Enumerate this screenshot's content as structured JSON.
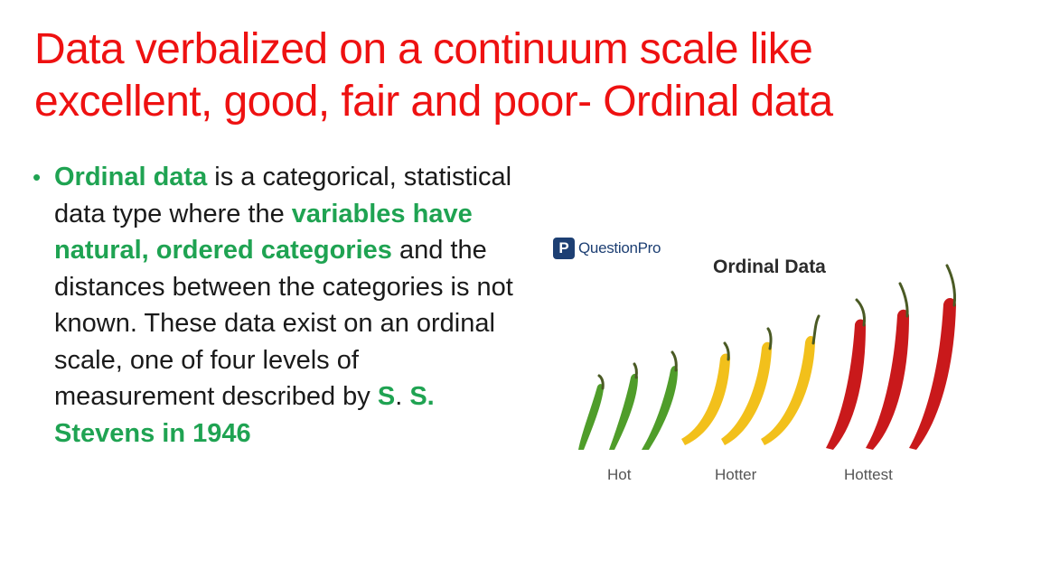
{
  "slide": {
    "title_line1": "Data verbalized on a continuum scale like",
    "title_line2": "excellent, good, fair and poor- Ordinal data",
    "bullet": {
      "p1_em": "Ordinal data",
      "p1": " is a categorical, statistical data type where the ",
      "p2_em": "variables have natural, ordered categories",
      "p2": " and the distances between the categories is not known. These data exist on an ordinal scale, one of four levels of measurement described by ",
      "p3_em": "S",
      "p3": ". ",
      "p4_em": "S. Stevens in 1946"
    }
  },
  "figure": {
    "brand": "QuestionPro",
    "brand_mark": "P",
    "title": "Ordinal Data",
    "captions": [
      "Hot",
      "Hotter",
      "Hottest"
    ]
  },
  "colors": {
    "title": "#ee1111",
    "accent": "#1fa352",
    "green_pepper": "#4f9d2a",
    "yellow_pepper": "#f2c01b",
    "red_pepper": "#c9191b",
    "stem": "#4a5a24"
  }
}
